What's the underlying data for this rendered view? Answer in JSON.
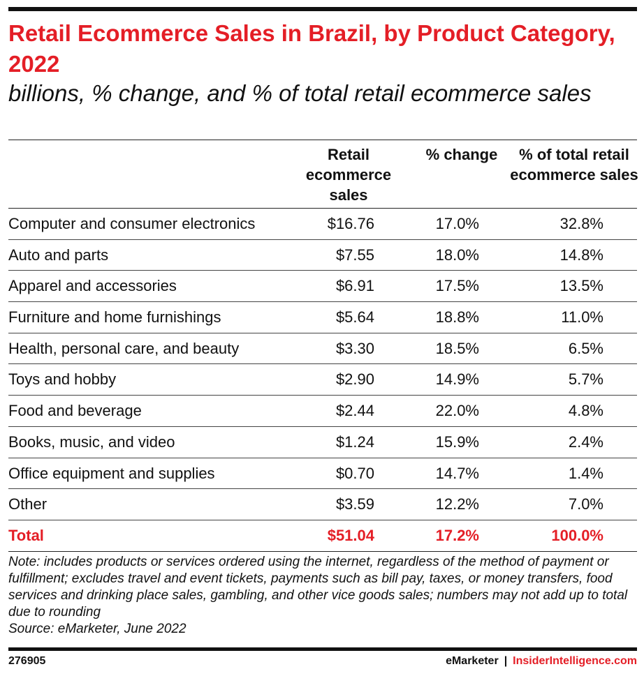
{
  "chart_data": {
    "type": "table",
    "title": "Retail Ecommerce Sales in Brazil, by Product Category, 2022",
    "subtitle": "billions, % change, and % of total retail ecommerce sales",
    "columns": [
      "Retail ecommerce sales",
      "% change",
      "% of total retail ecommerce sales"
    ],
    "rows": [
      {
        "label": "Computer and consumer electronics",
        "values": [
          "$16.76",
          "17.0%",
          "32.8%"
        ]
      },
      {
        "label": "Auto and parts",
        "values": [
          "$7.55",
          "18.0%",
          "14.8%"
        ]
      },
      {
        "label": "Apparel and accessories",
        "values": [
          "$6.91",
          "17.5%",
          "13.5%"
        ]
      },
      {
        "label": "Furniture and home furnishings",
        "values": [
          "$5.64",
          "18.8%",
          "11.0%"
        ]
      },
      {
        "label": "Health, personal care, and beauty",
        "values": [
          "$3.30",
          "18.5%",
          "6.5%"
        ]
      },
      {
        "label": "Toys and hobby",
        "values": [
          "$2.90",
          "14.9%",
          "5.7%"
        ]
      },
      {
        "label": "Food and beverage",
        "values": [
          "$2.44",
          "22.0%",
          "4.8%"
        ]
      },
      {
        "label": "Books, music, and video",
        "values": [
          "$1.24",
          "15.9%",
          "2.4%"
        ]
      },
      {
        "label": "Office equipment and supplies",
        "values": [
          "$0.70",
          "14.7%",
          "1.4%"
        ]
      },
      {
        "label": "Other",
        "values": [
          "$3.59",
          "12.2%",
          "7.0%"
        ]
      }
    ],
    "total": {
      "label": "Total",
      "values": [
        "$51.04",
        "17.2%",
        "100.0%"
      ]
    },
    "note": "Note: includes products or services ordered using the internet, regardless of the method of payment or fulfillment; excludes travel and event tickets, payments such as bill pay, taxes, or money transfers, food services and drinking place sales, gambling, and other vice goods sales; numbers may not add up to total due to rounding",
    "source": "Source: eMarketer, June 2022"
  },
  "footer": {
    "chart_id": "276905",
    "brand": "eMarketer",
    "separator": "|",
    "brand2": "InsiderIntelligence.com"
  },
  "colors": {
    "accent": "#e41e26",
    "text": "#111111"
  }
}
